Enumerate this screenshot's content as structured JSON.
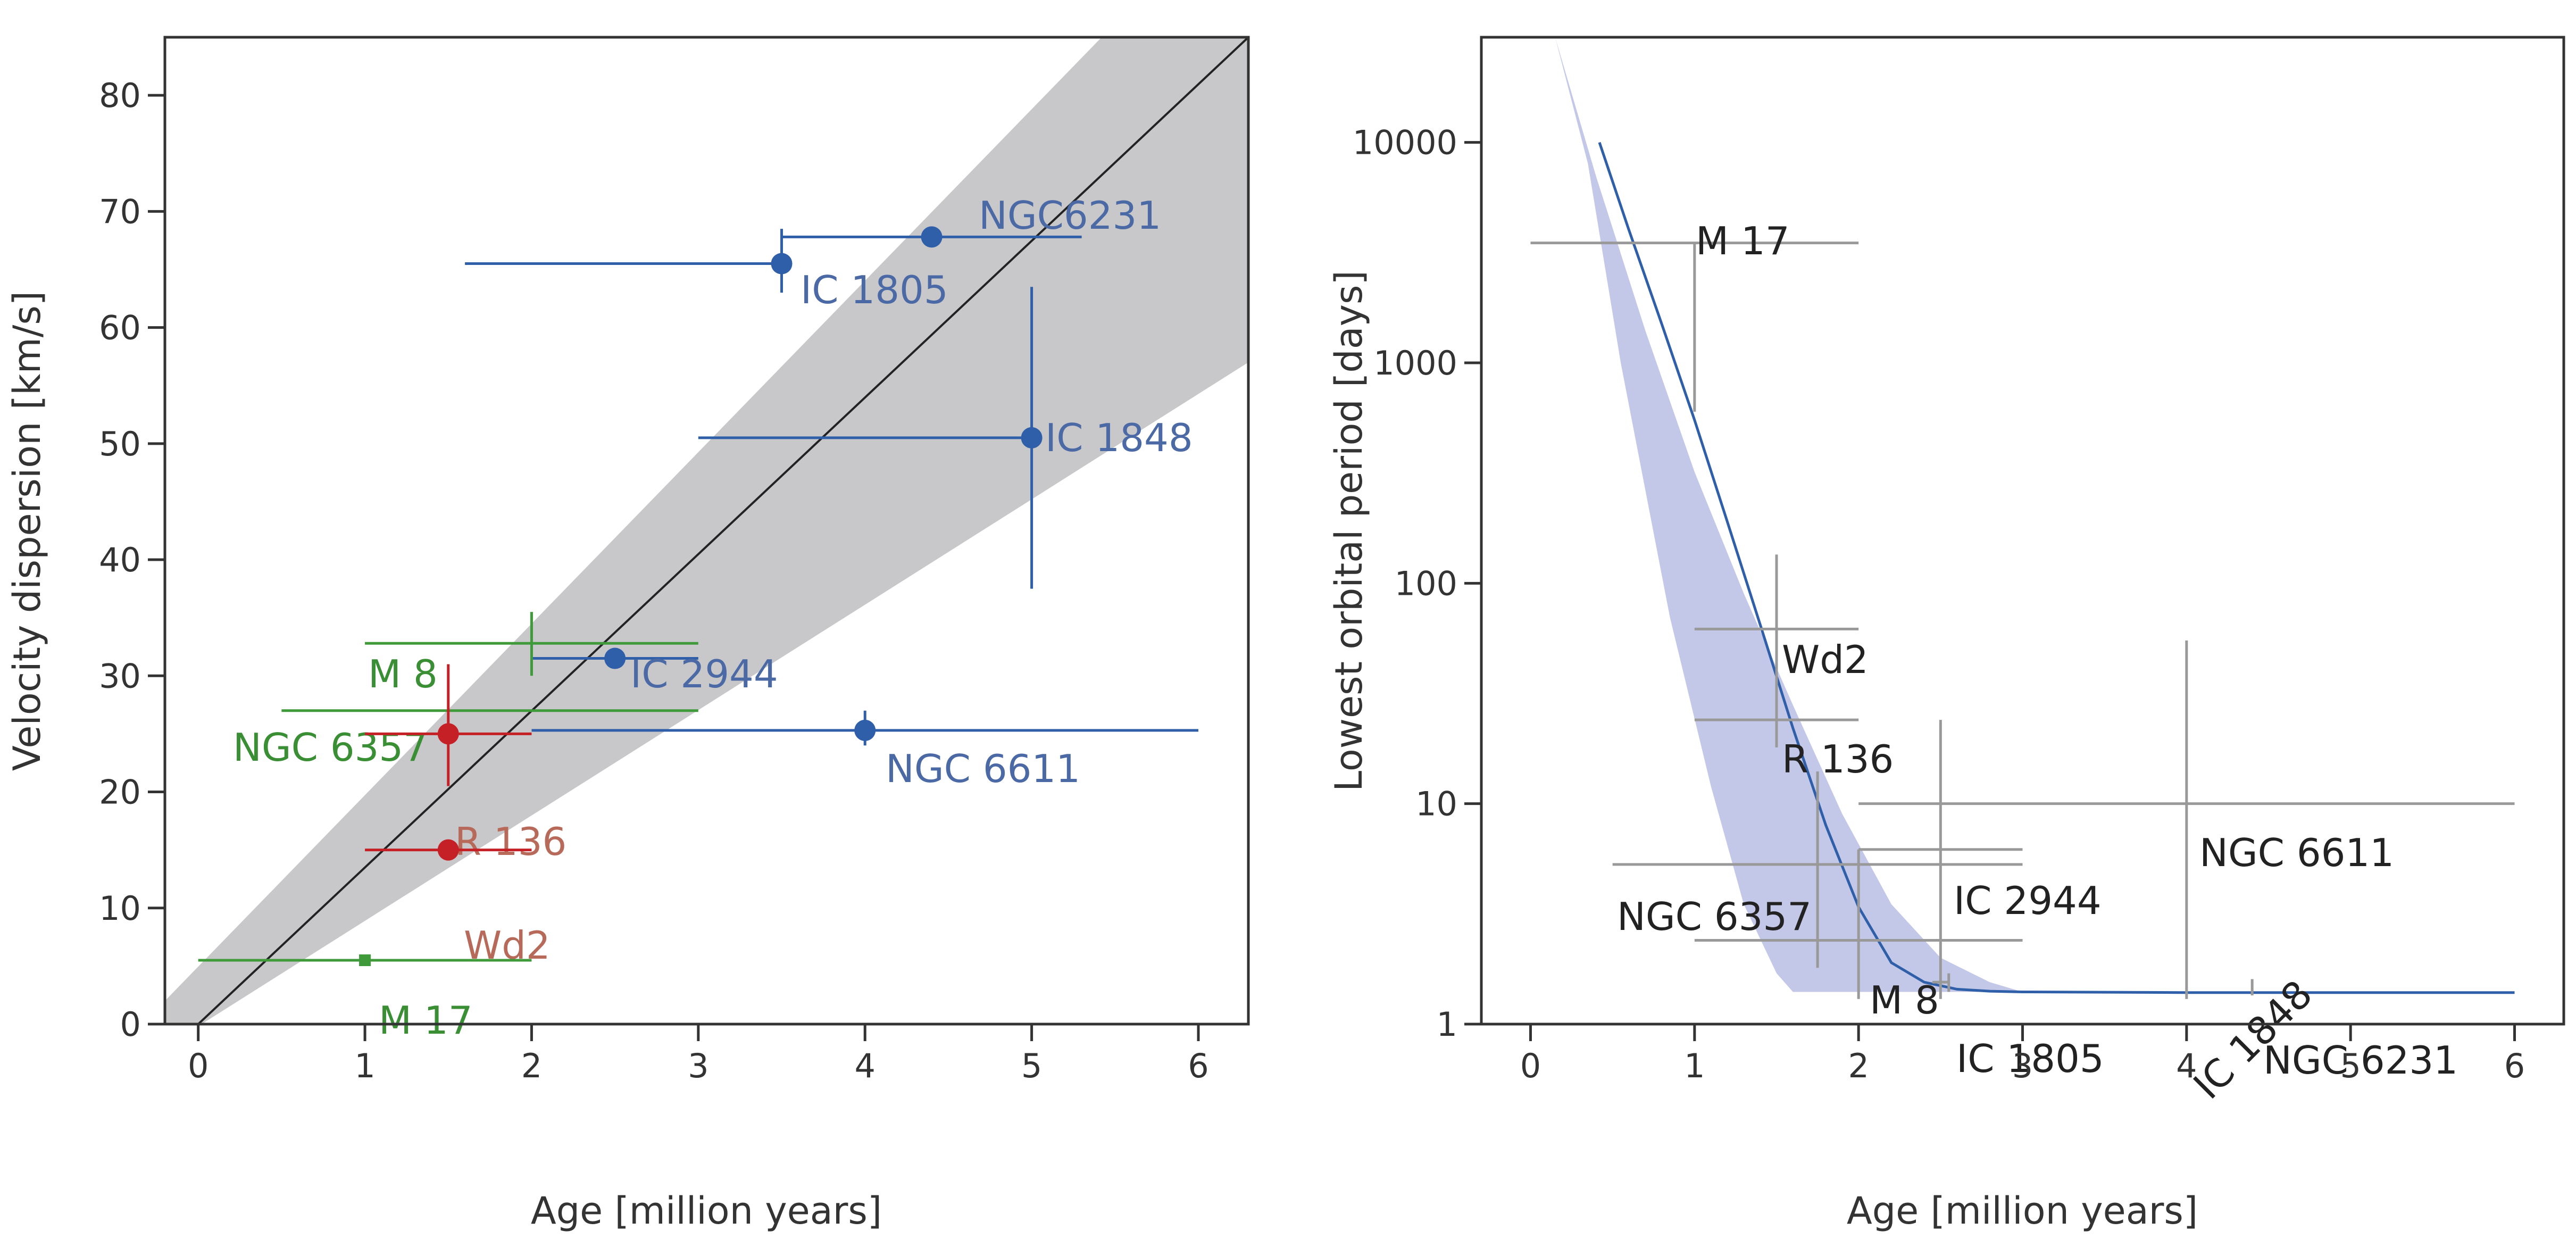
{
  "colors": {
    "blue": "#2f5fa8",
    "blue_text": "#4b6aa5",
    "green": "#3f9a3a",
    "green_text": "#3a8f35",
    "red": "#c42026",
    "red_text": "#b86a5a",
    "gray_band": "#c8c8ca",
    "lavender_band": "#c4c8e8",
    "gray_errorbar": "#999999",
    "black": "#222222"
  },
  "chart_data": [
    {
      "type": "scatter",
      "xlabel": "Age [million years]",
      "ylabel": "Velocity dispersion [km/s]",
      "xlim": [
        -0.2,
        6.3
      ],
      "ylim": [
        0,
        85
      ],
      "xticks": [
        "0",
        "1",
        "2",
        "3",
        "4",
        "5",
        "6"
      ],
      "yticks": [
        "0",
        "10",
        "20",
        "30",
        "40",
        "50",
        "60",
        "70",
        "80"
      ],
      "band": {
        "x": [
          -0.2,
          6.3
        ],
        "lower": [
          -2,
          57
        ],
        "upper": [
          2,
          98
        ]
      },
      "fit_line": {
        "x": [
          -0.2,
          6.3
        ],
        "y": [
          -2.7,
          85
        ]
      },
      "points": [
        {
          "label": "NGC6231",
          "x": 4.4,
          "y": 67.8,
          "xerr": [
            3.5,
            5.3
          ],
          "yerr": null,
          "color": "blue",
          "marker": "dot"
        },
        {
          "label": "IC 1805",
          "x": 3.5,
          "y": 65.5,
          "xerr": [
            1.6,
            3.5
          ],
          "yerr": [
            63,
            68.5
          ],
          "color": "blue",
          "marker": "dot"
        },
        {
          "label": "IC 1848",
          "x": 5.0,
          "y": 50.5,
          "xerr": [
            3.0,
            5.0
          ],
          "yerr": [
            37.5,
            63.5
          ],
          "color": "blue",
          "marker": "dot"
        },
        {
          "label": "IC 2944",
          "x": 2.5,
          "y": 31.5,
          "xerr": [
            2.0,
            3.0
          ],
          "yerr": null,
          "color": "blue",
          "marker": "dot"
        },
        {
          "label": "NGC 6611",
          "x": 4.0,
          "y": 25.3,
          "xerr": [
            2.0,
            6.0
          ],
          "yerr": [
            24,
            27
          ],
          "color": "blue",
          "marker": "dot"
        },
        {
          "label": "M 8",
          "x": 2.0,
          "y": 32.8,
          "xerr": [
            1.0,
            3.0
          ],
          "yerr": [
            30,
            35.5
          ],
          "color": "green",
          "marker": "none"
        },
        {
          "label": "NGC 6357",
          "x": 2.0,
          "y": 27.0,
          "xerr": [
            0.5,
            3.0
          ],
          "yerr": null,
          "color": "green",
          "marker": "none"
        },
        {
          "label": "R 136",
          "x": 1.5,
          "y": 25.0,
          "xerr": [
            1.0,
            2.0
          ],
          "yerr": [
            20.5,
            31
          ],
          "color": "red",
          "marker": "dot"
        },
        {
          "label": "Wd2",
          "x": 1.5,
          "y": 15.0,
          "xerr": [
            1.0,
            2.0
          ],
          "yerr": null,
          "color": "red",
          "marker": "dot"
        },
        {
          "label": "M 17",
          "x": 1.0,
          "y": 5.5,
          "xerr": [
            0.0,
            2.0
          ],
          "yerr": null,
          "color": "green",
          "marker": "square"
        }
      ]
    },
    {
      "type": "line",
      "xlabel": "Age [million years]",
      "ylabel": "Lowest orbital period [days]",
      "xlim": [
        -0.3,
        6.3
      ],
      "ylim": [
        1,
        30000
      ],
      "yscale": "log",
      "xticks": [
        "0",
        "1",
        "2",
        "3",
        "4",
        "5",
        "6"
      ],
      "yticks": [
        "1",
        "10",
        "100",
        "1000",
        "10000"
      ],
      "curve": {
        "x": [
          0.42,
          0.6,
          0.8,
          1.0,
          1.2,
          1.4,
          1.6,
          1.8,
          2.0,
          2.2,
          2.4,
          2.6,
          2.8,
          3.0,
          4.0,
          5.0,
          6.0
        ],
        "y": [
          10000,
          4000,
          1500,
          550,
          190,
          65,
          22,
          8,
          3.4,
          1.9,
          1.55,
          1.44,
          1.41,
          1.4,
          1.39,
          1.39,
          1.39
        ]
      },
      "band": {
        "x_upper": [
          0.15,
          0.4,
          0.7,
          1.0,
          1.3,
          1.6,
          1.9,
          2.2,
          2.5,
          2.8,
          3.0
        ],
        "y_upper": [
          30000,
          7000,
          1400,
          320,
          90,
          28,
          9,
          3.5,
          2.0,
          1.55,
          1.4
        ],
        "x_lower": [
          3.0,
          1.6,
          1.5,
          1.3,
          1.1,
          0.85,
          0.55,
          0.35,
          0.15
        ],
        "y_lower": [
          1.4,
          1.4,
          1.7,
          3.5,
          12,
          70,
          1000,
          8000,
          30000
        ]
      },
      "points": [
        {
          "label": "M 17",
          "x": 1.0,
          "y": 3500,
          "xerr": [
            0.0,
            2.0
          ],
          "yerr": [
            600,
            3500
          ]
        },
        {
          "label": "Wd2",
          "x": 1.5,
          "y": 62,
          "xerr": [
            1.0,
            2.0
          ],
          "yerr": [
            25,
            135
          ]
        },
        {
          "label": "R 136",
          "x": 1.5,
          "y": 24,
          "xerr": [
            1.0,
            2.0
          ],
          "yerr": [
            18,
            62
          ]
        },
        {
          "label": "NGC 6611",
          "x": 4.0,
          "y": 10,
          "xerr": [
            2.0,
            6.0
          ],
          "yerr": [
            1.4,
            55
          ]
        },
        {
          "label": "IC 2944",
          "x": 2.5,
          "y": 6.2,
          "xerr": [
            2.0,
            3.0
          ],
          "yerr": [
            1.3,
            24
          ]
        },
        {
          "label": "NGC 6357",
          "x": 1.75,
          "y": 5.3,
          "xerr": [
            0.5,
            3.0
          ],
          "yerr": [
            1.8,
            14
          ]
        },
        {
          "label": "M 8",
          "x": 2.0,
          "y": 2.4,
          "xerr": [
            1.0,
            3.0
          ],
          "yerr": [
            1.3,
            6.2
          ]
        },
        {
          "label": "IC 1805",
          "x": 2.55,
          "y": 1.55,
          "xerr": [
            2.45,
            2.55
          ],
          "yerr": [
            1.4,
            1.7
          ]
        },
        {
          "label": "IC 1848",
          "x": 4.0,
          "y": 1.4,
          "xerr": null,
          "yerr": [
            1.3,
            1.4
          ]
        },
        {
          "label": "NGC 6231",
          "x": 4.4,
          "y": 1.4,
          "xerr": null,
          "yerr": [
            1.35,
            1.6
          ]
        }
      ]
    }
  ]
}
